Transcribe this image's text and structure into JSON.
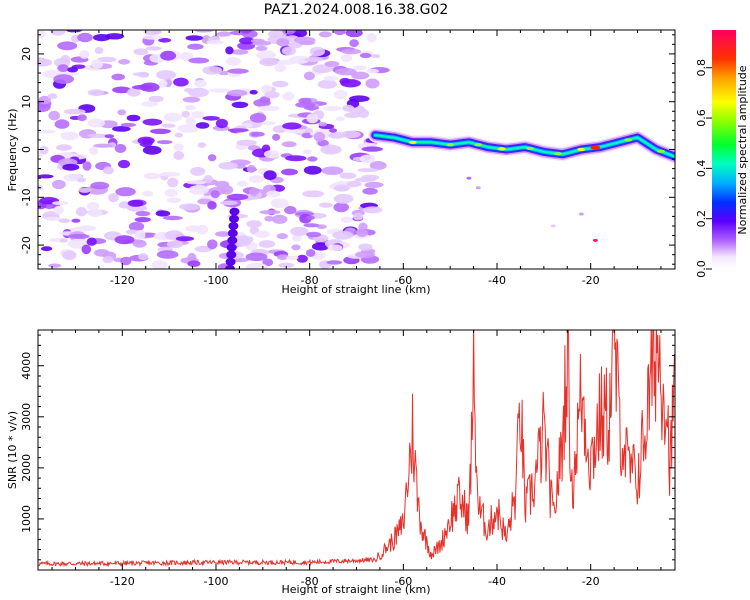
{
  "title": "PAZ1.2024.008.16.38.G02",
  "chart_data": [
    {
      "type": "heatmap",
      "xlabel": "Height of straight line (km)",
      "ylabel": "Frequency (Hz)",
      "xlim": [
        -138,
        -2
      ],
      "ylim": [
        -25,
        25
      ],
      "xticks": [
        -120,
        -100,
        -80,
        -60,
        -40,
        -20
      ],
      "yticks": [
        -20,
        -10,
        0,
        10,
        20
      ],
      "colormap": "gist_rainbow",
      "colorbar": {
        "label": "Normalized spectral amplitude",
        "range": [
          0,
          0.95
        ],
        "ticks": [
          0.0,
          0.2,
          0.4,
          0.6,
          0.8
        ]
      },
      "noise_region_x": [
        -138,
        -65
      ],
      "signal_ridge": {
        "x": [
          -66,
          -62,
          -58,
          -54,
          -50,
          -46,
          -42,
          -38,
          -34,
          -30,
          -26,
          -22,
          -18,
          -14,
          -10,
          -6,
          -2
        ],
        "freq_hz": [
          3,
          2.5,
          1.5,
          1.5,
          1,
          1.5,
          0.5,
          0,
          0.5,
          -0.5,
          -1,
          0,
          0.5,
          1.5,
          2.5,
          0,
          -1.5
        ],
        "peak_amplitude_x": -19
      }
    },
    {
      "type": "line",
      "xlabel": "Height of straight line (km)",
      "ylabel": "SNR (10 * v/v)",
      "xlim": [
        -138,
        -2
      ],
      "ylim": [
        0,
        4700
      ],
      "xticks": [
        -120,
        -100,
        -80,
        -60,
        -40,
        -20
      ],
      "yticks": [
        1000,
        2000,
        3000,
        4000
      ],
      "color": "#e8302a",
      "series": [
        {
          "x": [
            -138,
            -120,
            -100,
            -80,
            -66,
            -62,
            -60,
            -58,
            -57,
            -56,
            -54,
            -52,
            -50,
            -48,
            -46,
            -45,
            -44,
            -42,
            -40,
            -38,
            -36,
            -35,
            -34,
            -32,
            -30,
            -28,
            -26,
            -25,
            -24,
            -22,
            -20,
            -18,
            -16,
            -15,
            -14,
            -12,
            -10,
            -8,
            -6,
            -4,
            -3,
            -2
          ],
          "y": [
            120,
            130,
            150,
            150,
            200,
            600,
            900,
            2750,
            1400,
            800,
            300,
            500,
            1000,
            1400,
            1000,
            3700,
            1200,
            800,
            1200,
            600,
            1500,
            3300,
            1200,
            1700,
            2700,
            1000,
            2500,
            4500,
            1500,
            3500,
            2100,
            3000,
            3000,
            4600,
            3000,
            2000,
            1800,
            3000,
            4450,
            3500,
            2000,
            3750
          ]
        }
      ]
    }
  ]
}
